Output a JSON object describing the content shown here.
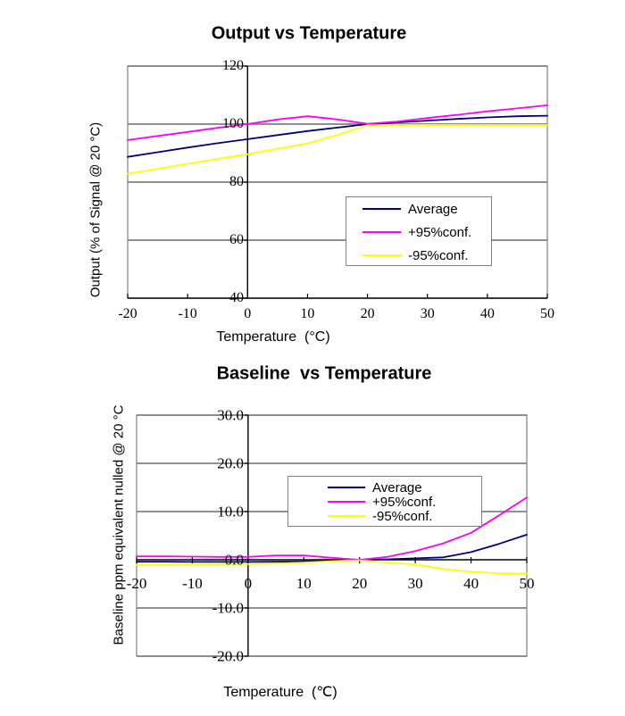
{
  "page": {
    "background": "#FFFFFF"
  },
  "chart_data": [
    {
      "type": "line",
      "title": "Output vs Temperature",
      "xlabel": "Temperature  (°C)",
      "ylabel": "Output (% of Signal @ 20 °C)",
      "xlim": [
        -20,
        50
      ],
      "ylim": [
        40,
        120
      ],
      "xticks": [
        -20,
        -10,
        0,
        10,
        20,
        30,
        40,
        50
      ],
      "xtick_labels": [
        "-20",
        "-10",
        "0",
        "10",
        "20",
        "30",
        "40",
        "50"
      ],
      "yticks": [
        120,
        100,
        80,
        60,
        40
      ],
      "ytick_labels": [
        "120",
        "100",
        "80",
        "60",
        "40"
      ],
      "grid": true,
      "gridline_color": "#808080",
      "axis_color": "#000000",
      "legend_position": "inside lower-right",
      "x": [
        -20,
        -15,
        -10,
        -5,
        0,
        5,
        10,
        15,
        20,
        25,
        30,
        35,
        40,
        45,
        50
      ],
      "series": [
        {
          "name": "Average",
          "color": "#000080",
          "values": [
            88.7,
            90.3,
            91.9,
            93.4,
            94.8,
            96.2,
            97.6,
            98.8,
            100.0,
            100.6,
            101.2,
            101.8,
            102.3,
            102.7,
            102.9
          ]
        },
        {
          "name": "+95%conf.",
          "color": "#FF00FF",
          "values": [
            94.5,
            95.9,
            97.3,
            98.7,
            100.0,
            101.6,
            102.7,
            101.6,
            100.1,
            100.9,
            102.1,
            103.2,
            104.4,
            105.4,
            106.5
          ]
        },
        {
          "name": "-95%conf.",
          "color": "#FFFF00",
          "values": [
            82.9,
            84.6,
            86.3,
            88.0,
            89.6,
            91.5,
            93.3,
            96.3,
            99.6,
            99.7,
            99.7,
            99.7,
            99.7,
            99.7,
            99.7
          ]
        }
      ]
    },
    {
      "type": "line",
      "title": "Baseline  vs Temperature",
      "xlabel": "Temperature  (℃)",
      "ylabel": "Baseline ppm equivalent nulled @ 20 °C",
      "xlim": [
        -20,
        50
      ],
      "ylim": [
        -20,
        30
      ],
      "xticks": [
        -20,
        -10,
        0,
        10,
        20,
        30,
        40,
        50
      ],
      "xtick_labels": [
        "-20",
        "-10",
        "0",
        "10",
        "20",
        "30",
        "40",
        "50"
      ],
      "yticks": [
        30,
        20,
        10,
        0,
        -10,
        -20
      ],
      "ytick_labels": [
        "30.0",
        "20.0",
        "10.0",
        "0.0",
        "-10.0",
        "-20.0"
      ],
      "grid": true,
      "gridline_color": "#808080",
      "axis_color": "#000000",
      "legend_position": "inside upper-center",
      "x": [
        -20,
        -15,
        -10,
        -5,
        0,
        5,
        10,
        15,
        20,
        25,
        30,
        35,
        40,
        45,
        50
      ],
      "series": [
        {
          "name": "Average",
          "color": "#000080",
          "values": [
            -0.4,
            -0.4,
            -0.45,
            -0.45,
            -0.45,
            -0.4,
            -0.35,
            -0.2,
            0.0,
            0.1,
            0.3,
            0.5,
            1.6,
            3.3,
            5.2
          ]
        },
        {
          "name": "+95%conf.",
          "color": "#FF00FF",
          "values": [
            0.7,
            0.7,
            0.65,
            0.6,
            0.6,
            0.9,
            0.9,
            0.4,
            0.0,
            0.6,
            1.8,
            3.4,
            5.6,
            9.2,
            12.9
          ]
        },
        {
          "name": "-95%conf.",
          "color": "#FFFF00",
          "values": [
            -1.1,
            -1.05,
            -1.0,
            -0.95,
            -0.9,
            -0.8,
            -0.6,
            -0.3,
            -0.1,
            -0.55,
            -1.0,
            -1.9,
            -2.5,
            -2.8,
            -2.9
          ]
        }
      ]
    }
  ]
}
